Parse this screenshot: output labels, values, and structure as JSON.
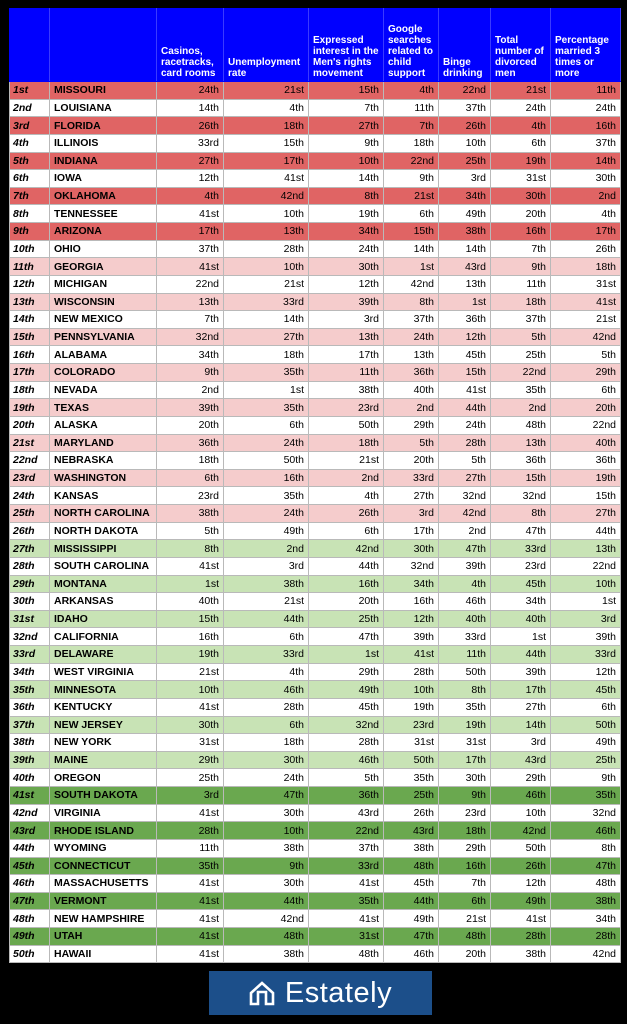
{
  "headers": [
    "",
    "",
    "Casinos, racetracks, card rooms",
    "Unemployment rate",
    "Expressed interest in the Men's rights movement",
    "Google searches related to child support",
    "Binge drinking",
    "Total number of divorced men",
    "Percentage married 3 times or more"
  ],
  "colors": {
    "header_bg": "#0000ff",
    "dark_red": "#e06464",
    "light_red": "#f5cccc",
    "light_green": "#c8e3b5",
    "mid_green": "#9ccd84",
    "dark_green": "#6aa84f",
    "white": "#ffffff"
  },
  "rows": [
    {
      "rank": "1st",
      "state": "MISSOURI",
      "values": [
        "24th",
        "21st",
        "15th",
        "4th",
        "22nd",
        "21st",
        "11th"
      ],
      "color": "dark_red"
    },
    {
      "rank": "2nd",
      "state": "LOUISIANA",
      "values": [
        "14th",
        "4th",
        "7th",
        "11th",
        "37th",
        "24th",
        "24th"
      ],
      "color": "white"
    },
    {
      "rank": "3rd",
      "state": "FLORIDA",
      "values": [
        "26th",
        "18th",
        "27th",
        "7th",
        "26th",
        "4th",
        "16th"
      ],
      "color": "dark_red"
    },
    {
      "rank": "4th",
      "state": "ILLINOIS",
      "values": [
        "33rd",
        "15th",
        "9th",
        "18th",
        "10th",
        "6th",
        "37th"
      ],
      "color": "white"
    },
    {
      "rank": "5th",
      "state": "INDIANA",
      "values": [
        "27th",
        "17th",
        "10th",
        "22nd",
        "25th",
        "19th",
        "14th"
      ],
      "color": "dark_red"
    },
    {
      "rank": "6th",
      "state": "IOWA",
      "values": [
        "12th",
        "41st",
        "14th",
        "9th",
        "3rd",
        "31st",
        "30th"
      ],
      "color": "white"
    },
    {
      "rank": "7th",
      "state": "OKLAHOMA",
      "values": [
        "4th",
        "42nd",
        "8th",
        "21st",
        "34th",
        "30th",
        "2nd"
      ],
      "color": "dark_red"
    },
    {
      "rank": "8th",
      "state": "TENNESSEE",
      "values": [
        "41st",
        "10th",
        "19th",
        "6th",
        "49th",
        "20th",
        "4th"
      ],
      "color": "white"
    },
    {
      "rank": "9th",
      "state": "ARIZONA",
      "values": [
        "17th",
        "13th",
        "34th",
        "15th",
        "38th",
        "16th",
        "17th"
      ],
      "color": "dark_red"
    },
    {
      "rank": "10th",
      "state": "OHIO",
      "values": [
        "37th",
        "28th",
        "24th",
        "14th",
        "14th",
        "7th",
        "26th"
      ],
      "color": "white"
    },
    {
      "rank": "11th",
      "state": "GEORGIA",
      "values": [
        "41st",
        "10th",
        "30th",
        "1st",
        "43rd",
        "9th",
        "18th"
      ],
      "color": "light_red"
    },
    {
      "rank": "12th",
      "state": "MICHIGAN",
      "values": [
        "22nd",
        "21st",
        "12th",
        "42nd",
        "13th",
        "11th",
        "31st"
      ],
      "color": "white"
    },
    {
      "rank": "13th",
      "state": "WISCONSIN",
      "values": [
        "13th",
        "33rd",
        "39th",
        "8th",
        "1st",
        "18th",
        "41st"
      ],
      "color": "light_red"
    },
    {
      "rank": "14th",
      "state": "NEW MEXICO",
      "values": [
        "7th",
        "14th",
        "3rd",
        "37th",
        "36th",
        "37th",
        "21st"
      ],
      "color": "white"
    },
    {
      "rank": "15th",
      "state": "PENNSYLVANIA",
      "values": [
        "32nd",
        "27th",
        "13th",
        "24th",
        "12th",
        "5th",
        "42nd"
      ],
      "color": "light_red"
    },
    {
      "rank": "16th",
      "state": "ALABAMA",
      "values": [
        "34th",
        "18th",
        "17th",
        "13th",
        "45th",
        "25th",
        "5th"
      ],
      "color": "white"
    },
    {
      "rank": "17th",
      "state": "COLORADO",
      "values": [
        "9th",
        "35th",
        "11th",
        "36th",
        "15th",
        "22nd",
        "29th"
      ],
      "color": "light_red"
    },
    {
      "rank": "18th",
      "state": "NEVADA",
      "values": [
        "2nd",
        "1st",
        "38th",
        "40th",
        "41st",
        "35th",
        "6th"
      ],
      "color": "white"
    },
    {
      "rank": "19th",
      "state": "TEXAS",
      "values": [
        "39th",
        "35th",
        "23rd",
        "2nd",
        "44th",
        "2nd",
        "20th"
      ],
      "color": "light_red"
    },
    {
      "rank": "20th",
      "state": "ALASKA",
      "values": [
        "20th",
        "6th",
        "50th",
        "29th",
        "24th",
        "48th",
        "22nd"
      ],
      "color": "white"
    },
    {
      "rank": "21st",
      "state": "MARYLAND",
      "values": [
        "36th",
        "24th",
        "18th",
        "5th",
        "28th",
        "13th",
        "40th"
      ],
      "color": "light_red"
    },
    {
      "rank": "22nd",
      "state": "NEBRASKA",
      "values": [
        "18th",
        "50th",
        "21st",
        "20th",
        "5th",
        "36th",
        "36th"
      ],
      "color": "white"
    },
    {
      "rank": "23rd",
      "state": "WASHINGTON",
      "values": [
        "6th",
        "16th",
        "2nd",
        "33rd",
        "27th",
        "15th",
        "19th"
      ],
      "color": "light_red"
    },
    {
      "rank": "24th",
      "state": "KANSAS",
      "values": [
        "23rd",
        "35th",
        "4th",
        "27th",
        "32nd",
        "32nd",
        "15th"
      ],
      "color": "white"
    },
    {
      "rank": "25th",
      "state": "NORTH CAROLINA",
      "values": [
        "38th",
        "24th",
        "26th",
        "3rd",
        "42nd",
        "8th",
        "27th"
      ],
      "color": "light_red"
    },
    {
      "rank": "26th",
      "state": "NORTH DAKOTA",
      "values": [
        "5th",
        "49th",
        "6th",
        "17th",
        "2nd",
        "47th",
        "44th"
      ],
      "color": "white"
    },
    {
      "rank": "27th",
      "state": "MISSISSIPPI",
      "values": [
        "8th",
        "2nd",
        "42nd",
        "30th",
        "47th",
        "33rd",
        "13th"
      ],
      "color": "light_green"
    },
    {
      "rank": "28th",
      "state": "SOUTH CAROLINA",
      "values": [
        "41st",
        "3rd",
        "44th",
        "32nd",
        "39th",
        "23rd",
        "22nd"
      ],
      "color": "white"
    },
    {
      "rank": "29th",
      "state": "MONTANA",
      "values": [
        "1st",
        "38th",
        "16th",
        "34th",
        "4th",
        "45th",
        "10th"
      ],
      "color": "light_green"
    },
    {
      "rank": "30th",
      "state": "ARKANSAS",
      "values": [
        "40th",
        "21st",
        "20th",
        "16th",
        "46th",
        "34th",
        "1st"
      ],
      "color": "white"
    },
    {
      "rank": "31st",
      "state": "IDAHO",
      "values": [
        "15th",
        "44th",
        "25th",
        "12th",
        "40th",
        "40th",
        "3rd"
      ],
      "color": "light_green"
    },
    {
      "rank": "32nd",
      "state": "CALIFORNIA",
      "values": [
        "16th",
        "6th",
        "47th",
        "39th",
        "33rd",
        "1st",
        "39th"
      ],
      "color": "white"
    },
    {
      "rank": "33rd",
      "state": "DELAWARE",
      "values": [
        "19th",
        "33rd",
        "1st",
        "41st",
        "11th",
        "44th",
        "33rd"
      ],
      "color": "light_green"
    },
    {
      "rank": "34th",
      "state": "WEST VIRGINIA",
      "values": [
        "21st",
        "4th",
        "29th",
        "28th",
        "50th",
        "39th",
        "12th"
      ],
      "color": "white"
    },
    {
      "rank": "35th",
      "state": "MINNESOTA",
      "values": [
        "10th",
        "46th",
        "49th",
        "10th",
        "8th",
        "17th",
        "45th"
      ],
      "color": "light_green"
    },
    {
      "rank": "36th",
      "state": "KENTUCKY",
      "values": [
        "41st",
        "28th",
        "45th",
        "19th",
        "35th",
        "27th",
        "6th"
      ],
      "color": "white"
    },
    {
      "rank": "37th",
      "state": "NEW JERSEY",
      "values": [
        "30th",
        "6th",
        "32nd",
        "23rd",
        "19th",
        "14th",
        "50th"
      ],
      "color": "light_green"
    },
    {
      "rank": "38th",
      "state": "NEW YORK",
      "values": [
        "31st",
        "18th",
        "28th",
        "31st",
        "31st",
        "3rd",
        "49th"
      ],
      "color": "white"
    },
    {
      "rank": "39th",
      "state": "MAINE",
      "values": [
        "29th",
        "30th",
        "46th",
        "50th",
        "17th",
        "43rd",
        "25th"
      ],
      "color": "light_green"
    },
    {
      "rank": "40th",
      "state": "OREGON",
      "values": [
        "25th",
        "24th",
        "5th",
        "35th",
        "30th",
        "29th",
        "9th"
      ],
      "color": "white"
    },
    {
      "rank": "41st",
      "state": "SOUTH DAKOTA",
      "values": [
        "3rd",
        "47th",
        "36th",
        "25th",
        "9th",
        "46th",
        "35th"
      ],
      "color": "dark_green"
    },
    {
      "rank": "42nd",
      "state": "VIRGINIA",
      "values": [
        "41st",
        "30th",
        "43rd",
        "26th",
        "23rd",
        "10th",
        "32nd"
      ],
      "color": "white"
    },
    {
      "rank": "43rd",
      "state": "RHODE ISLAND",
      "values": [
        "28th",
        "10th",
        "22nd",
        "43rd",
        "18th",
        "42nd",
        "46th"
      ],
      "color": "dark_green"
    },
    {
      "rank": "44th",
      "state": "WYOMING",
      "values": [
        "11th",
        "38th",
        "37th",
        "38th",
        "29th",
        "50th",
        "8th"
      ],
      "color": "white"
    },
    {
      "rank": "45th",
      "state": "CONNECTICUT",
      "values": [
        "35th",
        "9th",
        "33rd",
        "48th",
        "16th",
        "26th",
        "47th"
      ],
      "color": "dark_green"
    },
    {
      "rank": "46th",
      "state": "MASSACHUSETTS",
      "values": [
        "41st",
        "30th",
        "41st",
        "45th",
        "7th",
        "12th",
        "48th"
      ],
      "color": "white"
    },
    {
      "rank": "47th",
      "state": "VERMONT",
      "values": [
        "41st",
        "44th",
        "35th",
        "44th",
        "6th",
        "49th",
        "38th"
      ],
      "color": "dark_green"
    },
    {
      "rank": "48th",
      "state": "NEW HAMPSHIRE",
      "values": [
        "41st",
        "42nd",
        "41st",
        "49th",
        "21st",
        "41st",
        "34th"
      ],
      "color": "white"
    },
    {
      "rank": "49th",
      "state": "UTAH",
      "values": [
        "41st",
        "48th",
        "31st",
        "47th",
        "48th",
        "28th",
        "28th"
      ],
      "color": "dark_green"
    },
    {
      "rank": "50th",
      "state": "HAWAII",
      "values": [
        "41st",
        "38th",
        "48th",
        "46th",
        "20th",
        "38th",
        "42nd"
      ],
      "color": "white"
    }
  ],
  "logo": {
    "text": "Estately",
    "icon": "house-icon",
    "bg": "#1c4f8a"
  }
}
